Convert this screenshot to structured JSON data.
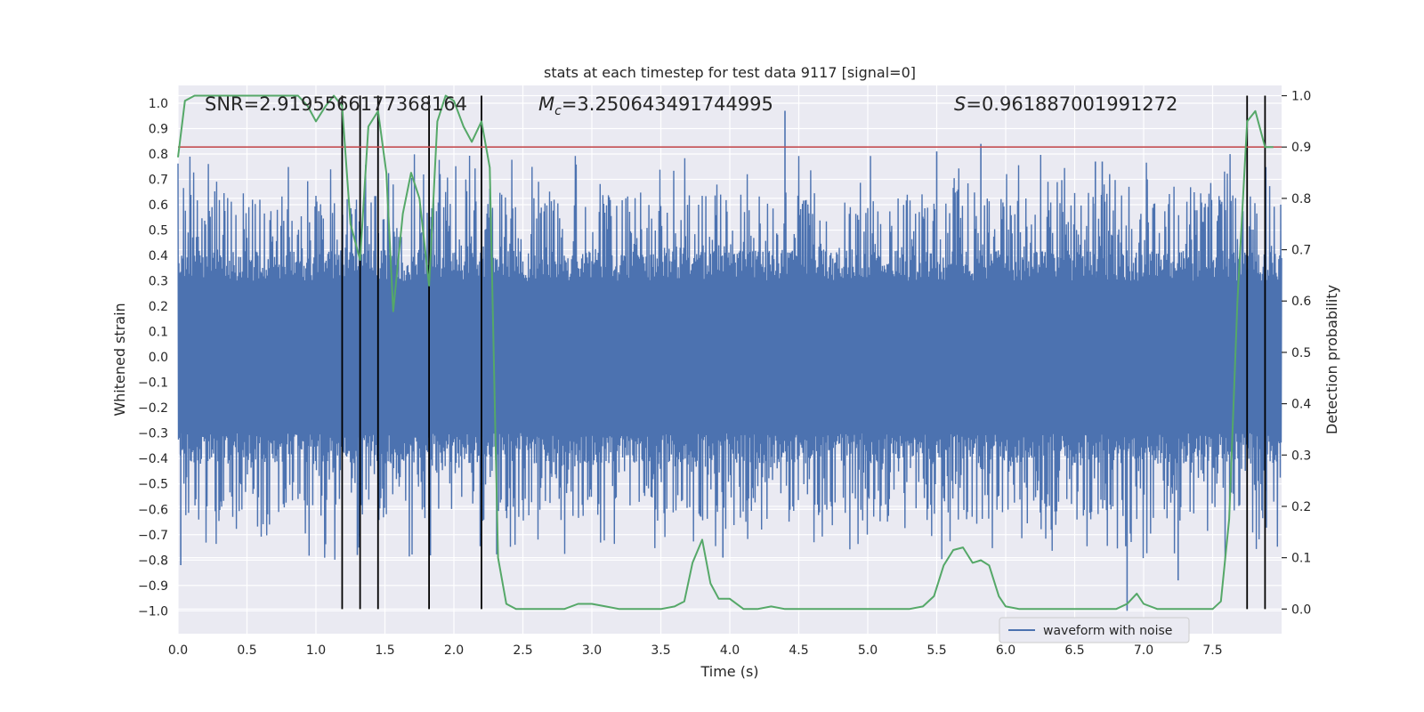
{
  "chart_data": {
    "type": "line",
    "title": "stats at each timestep for test data 9117 [signal=0]",
    "xlabel": "Time (s)",
    "ylabel_left": "Whitened strain",
    "ylabel_right": "Detection probability",
    "xlim": [
      0.0,
      8.0
    ],
    "ylim_left": [
      -1.09,
      1.07
    ],
    "ylim_right": [
      -0.048,
      1.02
    ],
    "x_ticks": [
      0.0,
      0.5,
      1.0,
      1.5,
      2.0,
      2.5,
      3.0,
      3.5,
      4.0,
      4.5,
      5.0,
      5.5,
      6.0,
      6.5,
      7.0,
      7.5
    ],
    "x_tick_labels": [
      "0.0",
      "0.5",
      "1.0",
      "1.5",
      "2.0",
      "2.5",
      "3.0",
      "3.5",
      "4.0",
      "4.5",
      "5.0",
      "5.5",
      "6.0",
      "6.5",
      "7.0",
      "7.5"
    ],
    "y_left_ticks": [
      -1.0,
      -0.9,
      -0.8,
      -0.7,
      -0.6,
      -0.5,
      -0.4,
      -0.3,
      -0.2,
      -0.1,
      0.0,
      0.1,
      0.2,
      0.3,
      0.4,
      0.5,
      0.6,
      0.7,
      0.8,
      0.9,
      1.0
    ],
    "y_left_tick_labels": [
      "−1.0",
      "−0.9",
      "−0.8",
      "−0.7",
      "−0.6",
      "−0.5",
      "−0.4",
      "−0.3",
      "−0.2",
      "−0.1",
      "0.0",
      "0.1",
      "0.2",
      "0.3",
      "0.4",
      "0.5",
      "0.6",
      "0.7",
      "0.8",
      "0.9",
      "1.0"
    ],
    "y_right_ticks": [
      0.0,
      0.1,
      0.2,
      0.3,
      0.4,
      0.5,
      0.6,
      0.7,
      0.8,
      0.9,
      1.0
    ],
    "y_right_tick_labels": [
      "0.0",
      "0.1",
      "0.2",
      "0.3",
      "0.4",
      "0.5",
      "0.6",
      "0.7",
      "0.8",
      "0.9",
      "1.0"
    ],
    "grid": true,
    "annotations": {
      "snr": "SNR=2.9195566177368164",
      "mc_symbol": "M",
      "mc_sub": "c",
      "mc_value": "=3.250643491744995",
      "s_symbol": "S",
      "s_value": "=0.961887001991272"
    },
    "threshold": {
      "axis": "right",
      "value": 0.9,
      "color": "#c44e52"
    },
    "vertical_lines": [
      1.19,
      1.32,
      1.45,
      1.82,
      2.2,
      7.75,
      7.88
    ],
    "vertical_lines_range_right": [
      0.0,
      1.0
    ],
    "waveform": {
      "name": "waveform with noise",
      "color": "#4c72b0",
      "x_range": [
        0.0,
        8.0
      ],
      "typical_envelope": [
        -0.42,
        0.4
      ],
      "max": 0.97,
      "min": -1.0
    },
    "probability": {
      "color": "#55a868",
      "x": [
        0.0,
        0.05,
        0.12,
        0.2,
        0.3,
        0.4,
        0.5,
        0.6,
        0.7,
        0.8,
        0.87,
        0.94,
        1.0,
        1.07,
        1.13,
        1.19,
        1.25,
        1.32,
        1.38,
        1.45,
        1.51,
        1.56,
        1.63,
        1.69,
        1.75,
        1.82,
        1.88,
        1.94,
        2.0,
        2.07,
        2.13,
        2.2,
        2.26,
        2.32,
        2.38,
        2.45,
        2.5,
        2.6,
        2.7,
        2.8,
        2.9,
        3.0,
        3.1,
        3.2,
        3.3,
        3.4,
        3.5,
        3.6,
        3.67,
        3.73,
        3.8,
        3.86,
        3.92,
        4.0,
        4.1,
        4.2,
        4.3,
        4.4,
        4.5,
        4.6,
        4.7,
        4.8,
        4.9,
        5.0,
        5.1,
        5.2,
        5.3,
        5.4,
        5.48,
        5.55,
        5.62,
        5.69,
        5.76,
        5.82,
        5.88,
        5.95,
        6.0,
        6.1,
        6.2,
        6.3,
        6.4,
        6.5,
        6.6,
        6.7,
        6.8,
        6.88,
        6.95,
        7.0,
        7.1,
        7.2,
        7.3,
        7.4,
        7.5,
        7.56,
        7.62,
        7.68,
        7.75,
        7.81,
        7.88,
        7.94
      ],
      "values": [
        0.88,
        0.99,
        1.0,
        1.0,
        1.0,
        1.0,
        1.0,
        1.0,
        1.0,
        1.0,
        1.0,
        0.98,
        0.95,
        0.98,
        1.0,
        0.98,
        0.75,
        0.68,
        0.94,
        0.97,
        0.85,
        0.58,
        0.77,
        0.85,
        0.8,
        0.63,
        0.95,
        1.0,
        0.99,
        0.94,
        0.91,
        0.95,
        0.86,
        0.1,
        0.01,
        0.0,
        0.0,
        0.0,
        0.0,
        0.0,
        0.01,
        0.01,
        0.005,
        0.0,
        0.0,
        0.0,
        0.0,
        0.005,
        0.015,
        0.09,
        0.135,
        0.05,
        0.02,
        0.02,
        0.0,
        0.0,
        0.005,
        0.0,
        0.0,
        0.0,
        0.0,
        0.0,
        0.0,
        0.0,
        0.0,
        0.0,
        0.0,
        0.005,
        0.025,
        0.085,
        0.115,
        0.12,
        0.09,
        0.095,
        0.085,
        0.025,
        0.005,
        0.0,
        0.0,
        0.0,
        0.0,
        0.0,
        0.0,
        0.0,
        0.0,
        0.01,
        0.03,
        0.01,
        0.0,
        0.0,
        0.0,
        0.0,
        0.0,
        0.015,
        0.175,
        0.6,
        0.95,
        0.97,
        0.9,
        0.9
      ]
    },
    "legend": {
      "placement": "lower-right",
      "entries": [
        "waveform with noise"
      ]
    }
  }
}
